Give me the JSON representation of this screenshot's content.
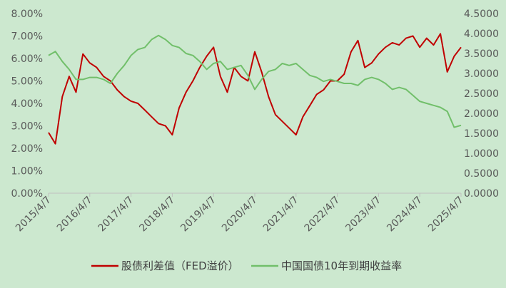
{
  "chart_data": {
    "type": "line",
    "title": "",
    "xlabel": "",
    "ylabel": "",
    "x": [
      "2015/4/7",
      "2015/6/7",
      "2015/8/7",
      "2015/10/7",
      "2015/12/7",
      "2016/2/7",
      "2016/4/7",
      "2016/6/7",
      "2016/8/7",
      "2016/10/7",
      "2016/12/7",
      "2017/2/7",
      "2017/4/7",
      "2017/6/7",
      "2017/8/7",
      "2017/10/7",
      "2017/12/7",
      "2018/2/7",
      "2018/4/7",
      "2018/6/7",
      "2018/8/7",
      "2018/10/7",
      "2018/12/7",
      "2019/2/7",
      "2019/4/7",
      "2019/6/7",
      "2019/8/7",
      "2019/10/7",
      "2019/12/7",
      "2020/2/7",
      "2020/4/7",
      "2020/6/7",
      "2020/8/7",
      "2020/10/7",
      "2020/12/7",
      "2021/2/7",
      "2021/4/7",
      "2021/6/7",
      "2021/8/7",
      "2021/10/7",
      "2021/12/7",
      "2022/2/7",
      "2022/4/7",
      "2022/6/7",
      "2022/8/7",
      "2022/10/7",
      "2022/12/7",
      "2023/2/7",
      "2023/4/7",
      "2023/6/7",
      "2023/8/7",
      "2023/10/7",
      "2023/12/7",
      "2024/2/7",
      "2024/4/7",
      "2024/6/7",
      "2024/8/7",
      "2024/10/7",
      "2024/12/7",
      "2025/2/7",
      "2025/4/7"
    ],
    "x_tick_labels": [
      "2015/4/7",
      "2016/4/7",
      "2017/4/7",
      "2018/4/7",
      "2019/4/7",
      "2020/4/7",
      "2021/4/7",
      "2022/4/7",
      "2023/4/7",
      "2024/4/7",
      "2025/4/7"
    ],
    "y_left": {
      "ylim": [
        0,
        8
      ],
      "tick_labels": [
        "0.00%",
        "1.00%",
        "2.00%",
        "3.00%",
        "4.00%",
        "5.00%",
        "6.00%",
        "7.00%",
        "8.00%"
      ]
    },
    "y_right": {
      "ylim": [
        0,
        4.5
      ],
      "tick_labels": [
        "0.0000",
        "0.5000",
        "1.0000",
        "1.5000",
        "2.0000",
        "2.5000",
        "3.0000",
        "3.5000",
        "4.0000",
        "4.5000"
      ]
    },
    "grid": false,
    "legend_position": "bottom",
    "series": [
      {
        "name": "股债利差值（FED溢价）",
        "axis": "left",
        "color": "#c00000",
        "values": [
          2.7,
          2.2,
          4.3,
          5.2,
          4.5,
          6.2,
          5.8,
          5.6,
          5.2,
          5.0,
          4.6,
          4.3,
          4.1,
          4.0,
          3.7,
          3.4,
          3.1,
          3.0,
          2.6,
          3.8,
          4.5,
          5.0,
          5.6,
          6.1,
          6.5,
          5.2,
          4.5,
          5.6,
          5.2,
          5.0,
          6.3,
          5.4,
          4.3,
          3.5,
          3.2,
          2.9,
          2.6,
          3.4,
          3.9,
          4.4,
          4.6,
          5.0,
          5.0,
          5.3,
          6.3,
          6.8,
          5.6,
          5.8,
          6.2,
          6.5,
          6.7,
          6.6,
          6.9,
          7.0,
          6.5,
          6.9,
          6.6,
          7.1,
          5.4,
          6.1,
          6.5
        ]
      },
      {
        "name": "中国国债10年到期收益率",
        "axis": "right",
        "color": "#71bf6a",
        "values": [
          3.45,
          3.55,
          3.3,
          3.1,
          2.85,
          2.85,
          2.9,
          2.9,
          2.85,
          2.75,
          3.0,
          3.2,
          3.45,
          3.6,
          3.65,
          3.85,
          3.95,
          3.85,
          3.7,
          3.65,
          3.5,
          3.45,
          3.3,
          3.1,
          3.25,
          3.3,
          3.1,
          3.15,
          3.2,
          2.95,
          2.6,
          2.85,
          3.05,
          3.1,
          3.25,
          3.2,
          3.25,
          3.1,
          2.95,
          2.9,
          2.8,
          2.85,
          2.8,
          2.75,
          2.75,
          2.7,
          2.85,
          2.9,
          2.85,
          2.75,
          2.6,
          2.65,
          2.6,
          2.45,
          2.3,
          2.25,
          2.2,
          2.15,
          2.05,
          1.65,
          1.7
        ]
      }
    ]
  }
}
